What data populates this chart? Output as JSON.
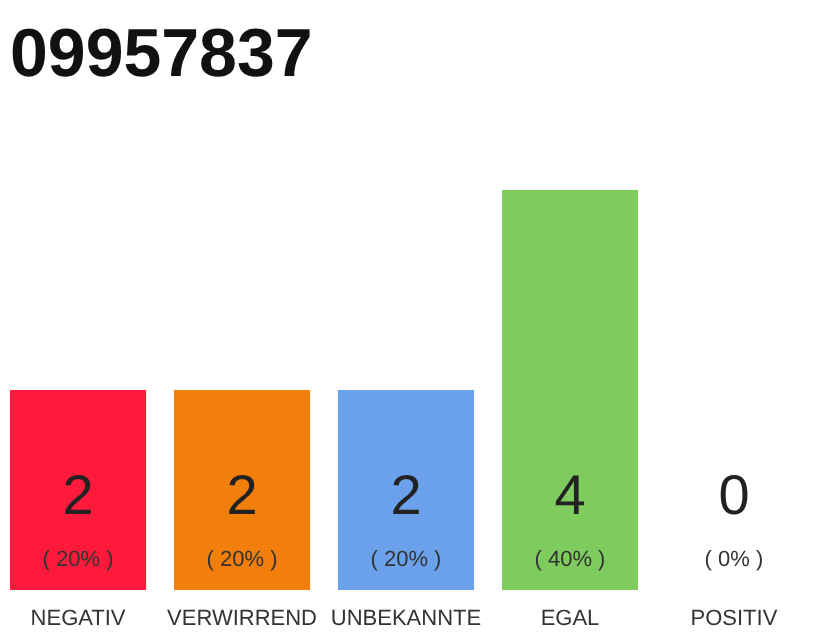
{
  "chart_data": {
    "type": "bar",
    "title": "09957837",
    "categories": [
      "NEGATIV",
      "VERWIRREND",
      "UNBEKANNTE",
      "EGAL",
      "POSITIV"
    ],
    "values": [
      20,
      20,
      20,
      40,
      0
    ],
    "colors": [
      "#ff1a3c",
      "#f27e0c",
      "#6aa1ea",
      "#7ecb5e",
      "#eeeeee"
    ],
    "value_labels": [
      "( 20% )",
      "( 20% )",
      "( 20% )",
      "( 40% )",
      "( 0% )"
    ],
    "annotations": [
      "2",
      "2",
      "2",
      "4",
      "0"
    ]
  }
}
